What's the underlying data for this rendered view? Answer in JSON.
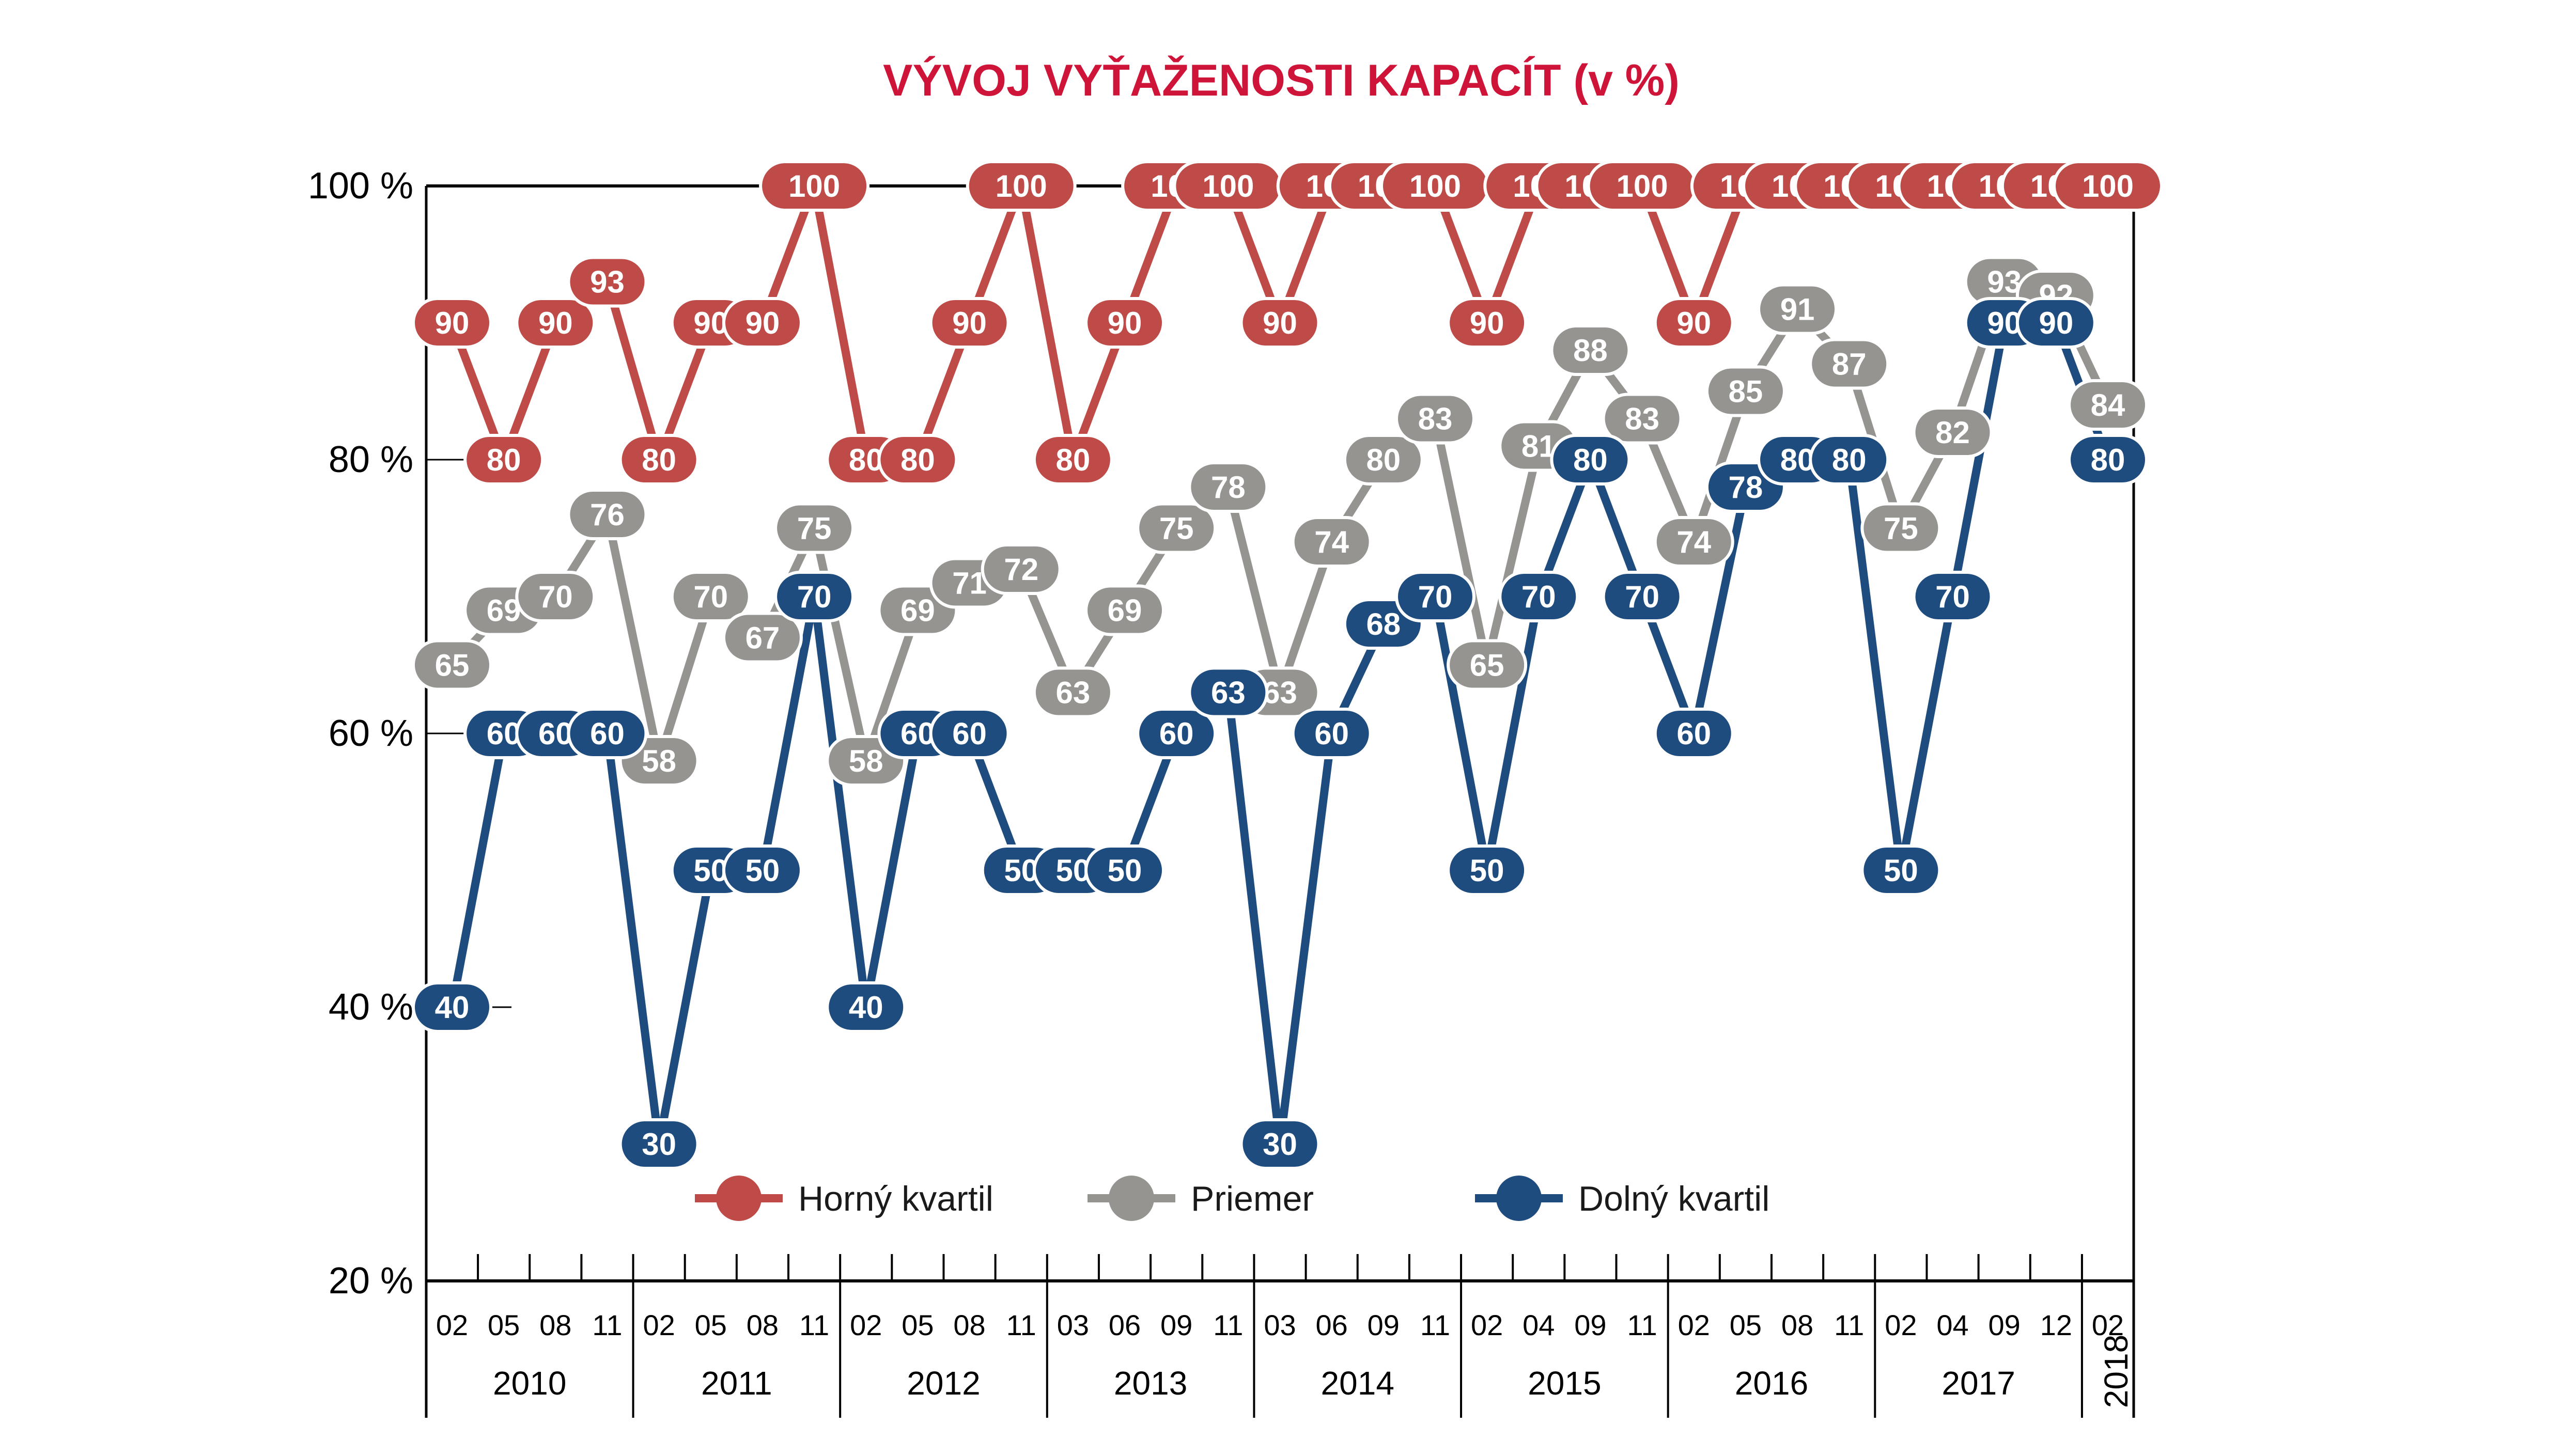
{
  "title": "VÝVOJ VYŤAŽENOSTI KAPACÍT (v %)",
  "title_color": "#CE1438",
  "colors": {
    "upper_quartile": "#BE4B48",
    "average": "#969491",
    "lower_quartile": "#1F4C7E",
    "axis": "#000000",
    "background": "#ffffff",
    "label_text": "#ffffff"
  },
  "y_axis": {
    "labels": [
      "100 %",
      "80 %",
      "60 %",
      "40 %",
      "20 %"
    ],
    "min": 20,
    "max": 100,
    "step": 20
  },
  "legend": [
    {
      "label": "Horný kvartil",
      "color": "#BE4B48"
    },
    {
      "label": "Priemer",
      "color": "#969491"
    },
    {
      "label": "Dolný kvartil",
      "color": "#1F4C7E"
    }
  ],
  "x_axis": {
    "years": [
      {
        "label": "2010",
        "months": [
          "02",
          "05",
          "08",
          "11"
        ]
      },
      {
        "label": "2011",
        "months": [
          "02",
          "05",
          "08",
          "11"
        ]
      },
      {
        "label": "2012",
        "months": [
          "02",
          "05",
          "08",
          "11"
        ]
      },
      {
        "label": "2013",
        "months": [
          "03",
          "06",
          "09",
          "11"
        ]
      },
      {
        "label": "2014",
        "months": [
          "03",
          "06",
          "09",
          "11"
        ]
      },
      {
        "label": "2015",
        "months": [
          "02",
          "04",
          "09",
          "11"
        ]
      },
      {
        "label": "2016",
        "months": [
          "02",
          "05",
          "08",
          "11"
        ]
      },
      {
        "label": "2017",
        "months": [
          "02",
          "04",
          "09",
          "12"
        ]
      },
      {
        "label": "2018",
        "months": [
          "02"
        ]
      }
    ]
  },
  "chart_data": {
    "type": "line",
    "title": "VÝVOJ VYŤAŽENOSTI KAPACÍT (v %)",
    "xlabel": "",
    "ylabel": "%",
    "ylim": [
      20,
      100
    ],
    "grid": "partial-left-stubs",
    "legend_position": "bottom-inside",
    "categories": [
      "2010-02",
      "2010-05",
      "2010-08",
      "2010-11",
      "2011-02",
      "2011-05",
      "2011-08",
      "2011-11",
      "2012-02",
      "2012-05",
      "2012-08",
      "2012-11",
      "2013-03",
      "2013-06",
      "2013-09",
      "2013-11",
      "2014-03",
      "2014-06",
      "2014-09",
      "2014-11",
      "2015-02",
      "2015-04",
      "2015-09",
      "2015-11",
      "2016-02",
      "2016-05",
      "2016-08",
      "2016-11",
      "2017-02",
      "2017-04",
      "2017-09",
      "2017-12",
      "2018-02"
    ],
    "series": [
      {
        "name": "Horný kvartil",
        "color": "#BE4B48",
        "values": [
          90,
          80,
          90,
          93,
          80,
          90,
          90,
          100,
          80,
          80,
          90,
          100,
          80,
          90,
          100,
          100,
          90,
          100,
          100,
          100,
          90,
          100,
          100,
          100,
          90,
          100,
          100,
          100,
          100,
          100,
          100,
          100,
          100
        ]
      },
      {
        "name": "Priemer",
        "color": "#969491",
        "values": [
          65,
          69,
          70,
          76,
          58,
          70,
          67,
          75,
          58,
          69,
          71,
          72,
          63,
          69,
          75,
          78,
          63,
          74,
          80,
          83,
          65,
          81,
          88,
          83,
          74,
          85,
          91,
          87,
          75,
          82,
          93,
          92,
          84
        ]
      },
      {
        "name": "Dolný kvartil",
        "color": "#1F4C7E",
        "values": [
          40,
          60,
          60,
          60,
          30,
          50,
          50,
          70,
          40,
          60,
          60,
          50,
          50,
          50,
          60,
          63,
          30,
          60,
          68,
          70,
          50,
          70,
          80,
          70,
          60,
          78,
          80,
          80,
          50,
          70,
          90,
          90,
          80
        ]
      }
    ]
  }
}
